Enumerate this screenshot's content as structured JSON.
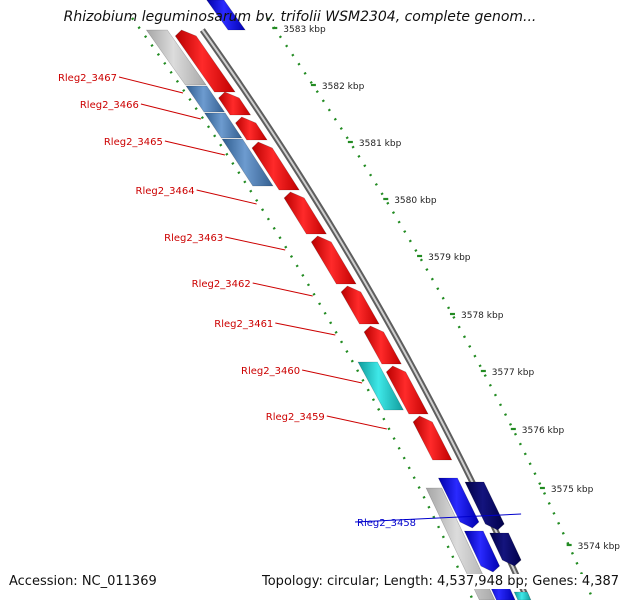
{
  "title": "Rhizobium leguminosarum bv. trifolii WSM2304, complete genom...",
  "accession": "Accession: NC_011369",
  "summary": "Topology: circular; Length: 4,537,948 bp; Genes: 4,387",
  "colors": {
    "forward_gene": "#ff0000",
    "reverse_gene_blue": "#0000ff",
    "reverse_gene_navy": "#00006e",
    "steel_gene": "#4a7ab0",
    "cyan_gene": "#18c8c8",
    "gray_gene": "#bdbdbd",
    "backbone": "#8a8a8a",
    "tick_green": "#228b22",
    "label_red": "#cc0000",
    "label_blue": "#0000cc"
  },
  "scale_ticks": [
    "3583 kbp",
    "3582 kbp",
    "3581 kbp",
    "3580 kbp",
    "3579 kbp",
    "3578 kbp",
    "3577 kbp",
    "3576 kbp",
    "3575 kbp",
    "3574 kbp"
  ],
  "gene_labels": [
    {
      "text": "Rleg2_3467",
      "strand": "forward"
    },
    {
      "text": "Rleg2_3466",
      "strand": "forward"
    },
    {
      "text": "Rleg2_3465",
      "strand": "forward"
    },
    {
      "text": "Rleg2_3464",
      "strand": "forward"
    },
    {
      "text": "Rleg2_3463",
      "strand": "forward"
    },
    {
      "text": "Rleg2_3462",
      "strand": "forward"
    },
    {
      "text": "Rleg2_3461",
      "strand": "forward"
    },
    {
      "text": "Rleg2_3460",
      "strand": "forward"
    },
    {
      "text": "Rleg2_3459",
      "strand": "forward"
    },
    {
      "text": "Rleg2_3458",
      "strand": "reverse"
    }
  ]
}
